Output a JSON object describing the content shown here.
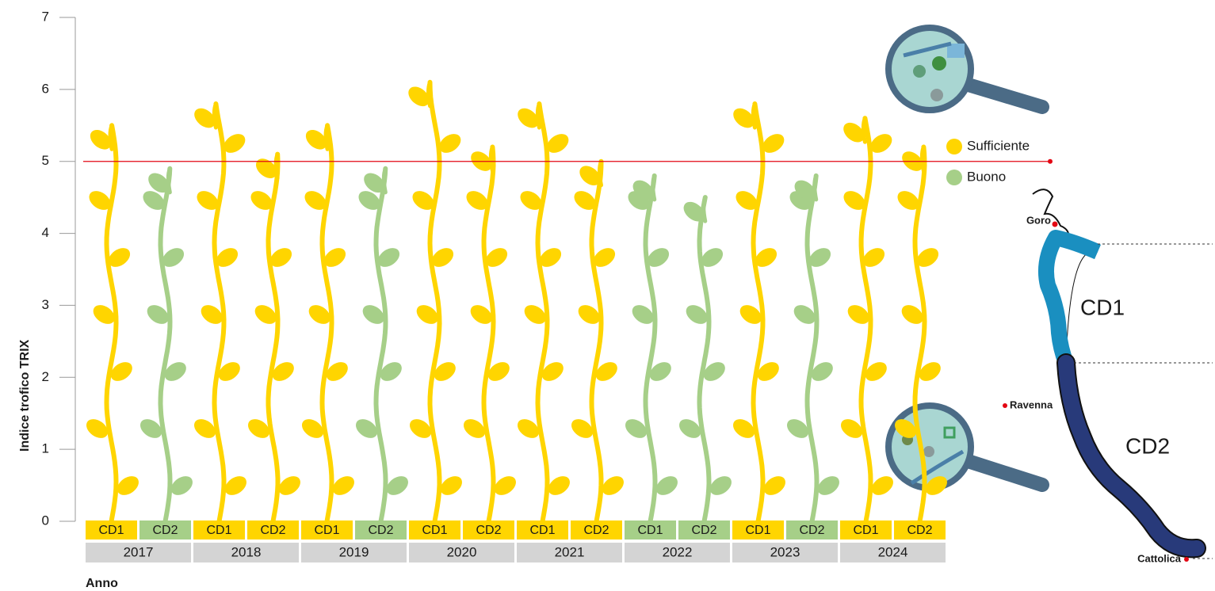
{
  "chart_data": {
    "type": "vine",
    "y_label": "Indice trofico TRIX",
    "x_label": "Anno",
    "categories": [
      "2017",
      "2018",
      "2019",
      "2020",
      "2021",
      "2022",
      "2023",
      "2024"
    ],
    "series": [
      {
        "name": "CD1",
        "values": [
          5.5,
          5.8,
          5.5,
          6.1,
          5.8,
          4.8,
          5.8,
          5.6
        ]
      },
      {
        "name": "CD2",
        "values": [
          4.9,
          5.1,
          4.9,
          5.2,
          5.0,
          4.5,
          4.8,
          5.2
        ]
      }
    ],
    "threshold": 5,
    "threshold_color": "#e30613",
    "legend": [
      {
        "name": "Sufficiente",
        "color": "#ffd500"
      },
      {
        "name": "Buono",
        "color": "#a6cf88"
      }
    ],
    "ylim": [
      0,
      7
    ],
    "yticks": [
      0,
      1,
      2,
      3,
      4,
      5,
      6,
      7
    ]
  },
  "map": {
    "places": [
      "Goro",
      "Ravenna",
      "Cattolica"
    ],
    "zones": [
      "CD1",
      "CD2"
    ]
  }
}
